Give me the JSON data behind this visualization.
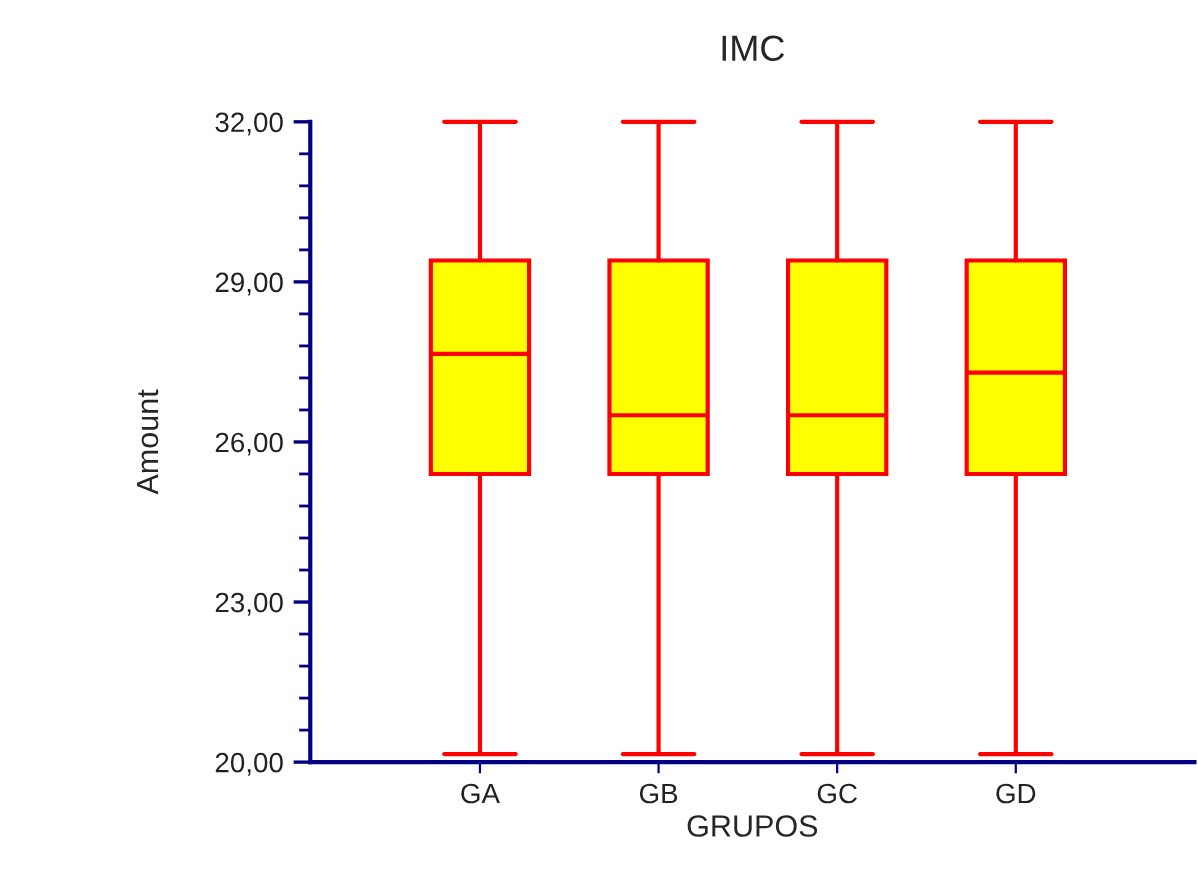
{
  "chart_data": {
    "type": "box",
    "title": "IMC",
    "xlabel": "GRUPOS",
    "ylabel": "Amount",
    "categories": [
      "GA",
      "GB",
      "GC",
      "GD"
    ],
    "boxes": [
      {
        "low": 20.15,
        "q1": 25.4,
        "median": 27.65,
        "q3": 29.4,
        "high": 32
      },
      {
        "low": 20.15,
        "q1": 25.4,
        "median": 26.5,
        "q3": 29.4,
        "high": 32
      },
      {
        "low": 20.15,
        "q1": 25.4,
        "median": 26.5,
        "q3": 29.4,
        "high": 32
      },
      {
        "low": 20.15,
        "q1": 25.4,
        "median": 27.3,
        "q3": 29.4,
        "high": 32
      }
    ],
    "color": "#ffff00",
    "ylim": [
      20,
      32
    ],
    "yticks": [
      {
        "value": 20,
        "label": "20,00"
      },
      {
        "value": 20.6,
        "label": null
      },
      {
        "value": 21.2,
        "label": null
      },
      {
        "value": 21.8,
        "label": null
      },
      {
        "value": 22.4,
        "label": null
      },
      {
        "value": 23,
        "label": "23,00"
      },
      {
        "value": 23.6,
        "label": null
      },
      {
        "value": 24.2,
        "label": null
      },
      {
        "value": 24.8,
        "label": null
      },
      {
        "value": 25.4,
        "label": null
      },
      {
        "value": 26,
        "label": "26,00"
      },
      {
        "value": 26.6,
        "label": null
      },
      {
        "value": 27.2,
        "label": null
      },
      {
        "value": 27.8,
        "label": null
      },
      {
        "value": 28.4,
        "label": null
      },
      {
        "value": 29,
        "label": "29,00"
      },
      {
        "value": 29.6,
        "label": null
      },
      {
        "value": 30.2,
        "label": null
      },
      {
        "value": 30.8,
        "label": null
      },
      {
        "value": 31.4,
        "label": null
      },
      {
        "value": 32,
        "label": "32,00"
      }
    ],
    "grid": false,
    "legend": false
  }
}
